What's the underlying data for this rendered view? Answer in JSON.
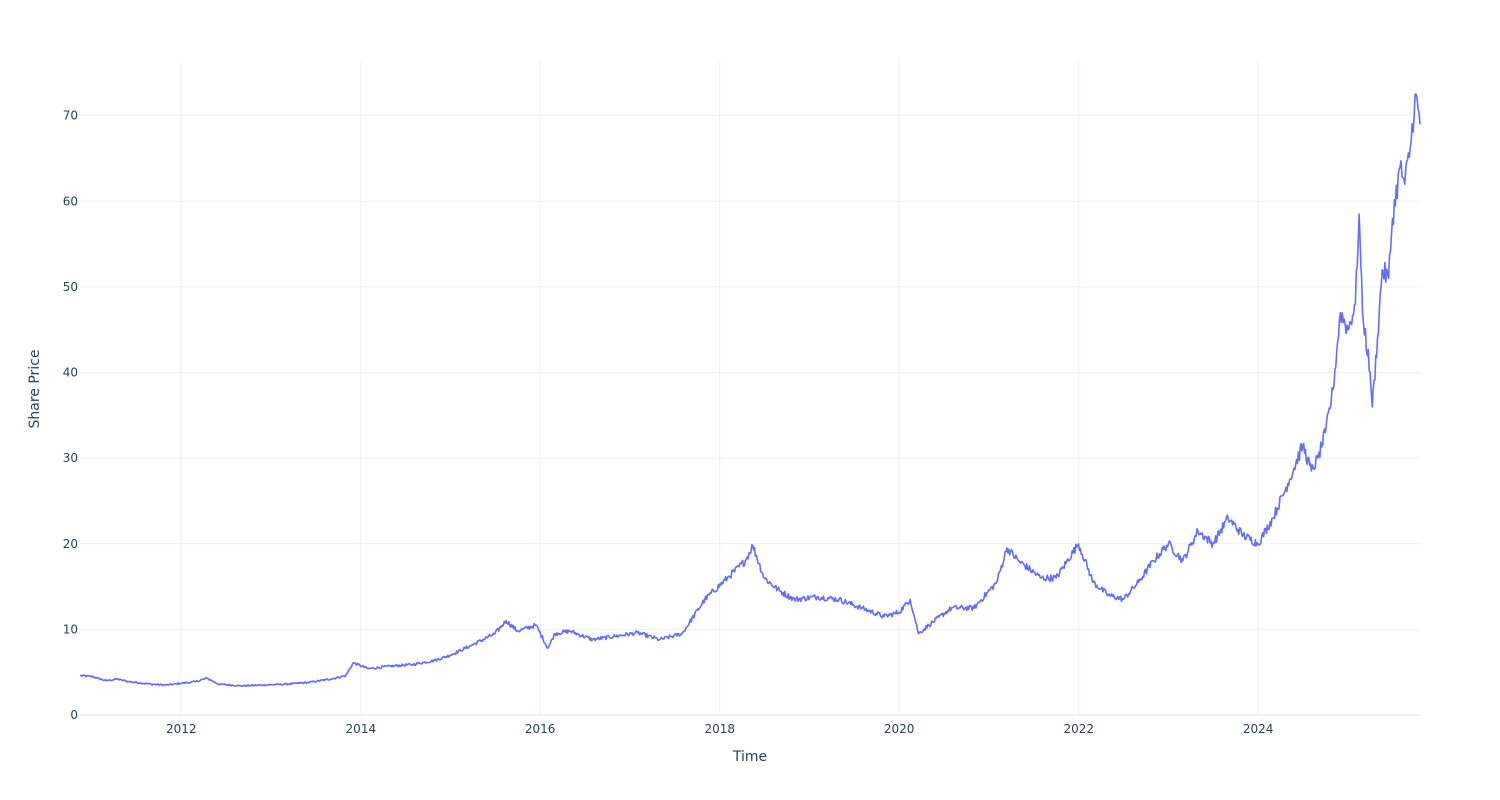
{
  "chart_data": {
    "type": "line",
    "xlabel": "Time",
    "ylabel": "Share Price",
    "xlim": [
      "2010-11-15",
      "2025-10-21"
    ],
    "ylim": [
      0,
      76.5
    ],
    "x_ticks": [
      "2012",
      "2014",
      "2016",
      "2018",
      "2020",
      "2022",
      "2024"
    ],
    "y_ticks": [
      0,
      10,
      20,
      30,
      40,
      50,
      60,
      70
    ],
    "grid": true,
    "colors": {
      "line": "#636efa",
      "grid": "#ebf0f8",
      "zeroline": "#ebf0f8",
      "text": "#2a3f5f"
    },
    "series": [
      {
        "x": [
          "2010-11-15",
          "2011-01-01",
          "2011-03-01",
          "2011-04-15",
          "2011-06-01",
          "2011-09-01",
          "2011-11-01",
          "2012-01-01",
          "2012-03-01",
          "2012-04-15",
          "2012-06-01",
          "2012-09-01",
          "2012-12-01",
          "2013-03-01",
          "2013-06-01",
          "2013-09-01",
          "2013-11-01",
          "2013-12-01",
          "2014-02-01",
          "2014-05-01",
          "2014-08-01",
          "2014-11-01",
          "2015-01-01",
          "2015-04-01",
          "2015-07-01",
          "2015-08-15",
          "2015-10-01",
          "2015-12-15",
          "2016-02-01",
          "2016-03-01",
          "2016-05-01",
          "2016-08-01",
          "2016-11-01",
          "2017-02-01",
          "2017-05-01",
          "2017-08-01",
          "2017-11-01",
          "2018-02-01",
          "2018-04-15",
          "2018-05-15",
          "2018-07-01",
          "2018-09-01",
          "2018-11-01",
          "2019-02-01",
          "2019-05-01",
          "2019-08-01",
          "2019-11-01",
          "2020-01-01",
          "2020-02-15",
          "2020-03-20",
          "2020-05-01",
          "2020-08-01",
          "2020-11-01",
          "2021-02-01",
          "2021-03-15",
          "2021-05-01",
          "2021-08-01",
          "2021-10-01",
          "2021-12-31",
          "2022-03-01",
          "2022-05-01",
          "2022-07-01",
          "2022-09-01",
          "2022-11-01",
          "2023-01-01",
          "2023-03-01",
          "2023-05-01",
          "2023-07-01",
          "2023-09-01",
          "2023-11-01",
          "2024-01-01",
          "2024-03-01",
          "2024-05-01",
          "2024-07-01",
          "2024-08-05",
          "2024-09-01",
          "2024-10-01",
          "2024-11-01",
          "2024-12-01",
          "2025-01-01",
          "2025-01-31",
          "2025-02-15",
          "2025-03-01",
          "2025-04-01",
          "2025-04-10",
          "2025-05-01",
          "2025-05-20",
          "2025-06-15",
          "2025-07-01",
          "2025-08-01",
          "2025-08-20",
          "2025-09-15",
          "2025-10-01",
          "2025-10-21"
        ],
        "values": [
          4.6,
          4.5,
          4.0,
          4.2,
          3.9,
          3.6,
          3.5,
          3.7,
          3.9,
          4.3,
          3.6,
          3.4,
          3.5,
          3.6,
          3.8,
          4.2,
          4.6,
          6.1,
          5.4,
          5.7,
          5.9,
          6.4,
          7.0,
          8.2,
          9.5,
          11.0,
          9.8,
          10.5,
          7.8,
          9.5,
          9.8,
          8.8,
          9.2,
          9.6,
          8.8,
          9.5,
          13.5,
          16.0,
          18.0,
          19.8,
          16.0,
          14.5,
          13.5,
          13.8,
          13.5,
          12.5,
          11.5,
          12.0,
          13.5,
          9.5,
          10.5,
          12.5,
          12.5,
          15.5,
          19.5,
          18.0,
          16.0,
          16.0,
          20.0,
          15.5,
          14.0,
          13.5,
          15.5,
          18.0,
          20.0,
          18.0,
          21.5,
          20.0,
          23.0,
          21.0,
          20.0,
          23.0,
          27.0,
          31.5,
          28.5,
          30.0,
          33.0,
          38.0,
          47.0,
          45.0,
          48.0,
          58.5,
          47.0,
          40.0,
          36.0,
          44.0,
          52.0,
          51.0,
          58.0,
          64.0,
          62.0,
          67.0,
          72.5,
          69.0
        ]
      }
    ]
  }
}
